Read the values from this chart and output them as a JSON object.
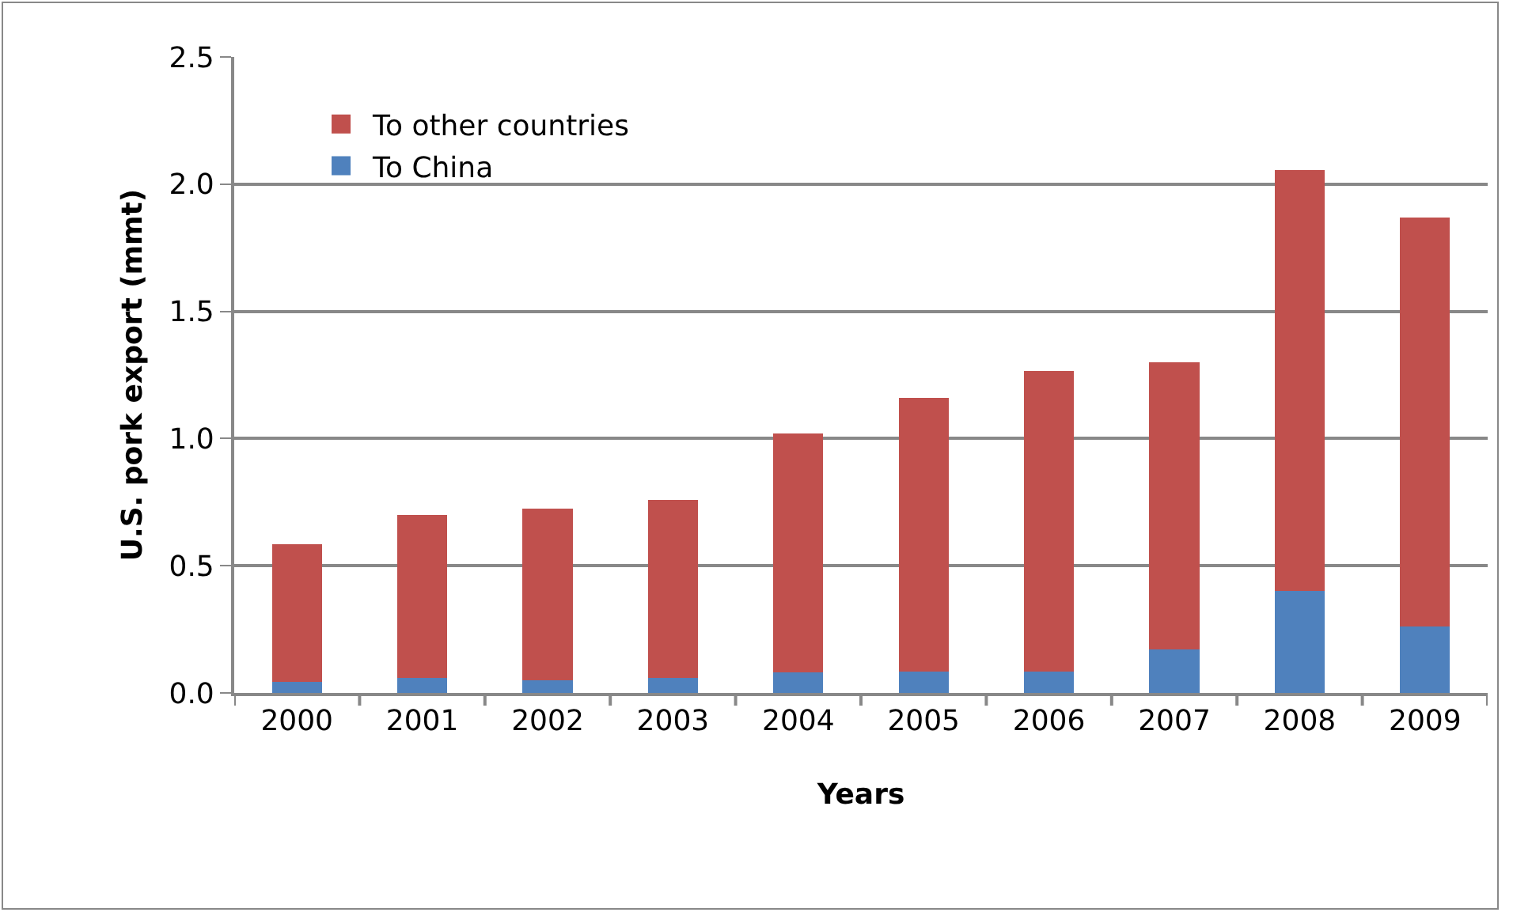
{
  "chart_data": {
    "type": "bar",
    "stacked": true,
    "xlabel": "Years",
    "ylabel": "U.S. pork export (mmt)",
    "categories": [
      "2000",
      "2001",
      "2002",
      "2003",
      "2004",
      "2005",
      "2006",
      "2007",
      "2008",
      "2009"
    ],
    "series": [
      {
        "name": "To China",
        "color": "#4f81bd",
        "values": [
          0.045,
          0.06,
          0.05,
          0.06,
          0.08,
          0.085,
          0.085,
          0.17,
          0.4,
          0.26
        ]
      },
      {
        "name": "To other countries",
        "color": "#c0504d",
        "values": [
          0.54,
          0.64,
          0.675,
          0.7,
          0.94,
          1.075,
          1.18,
          1.13,
          1.655,
          1.61
        ]
      }
    ],
    "ylim": [
      0,
      2.5
    ],
    "yticks": [
      {
        "value": 0,
        "label": "0.0"
      },
      {
        "value": 0.5,
        "label": "0.5"
      },
      {
        "value": 1,
        "label": "1.0"
      },
      {
        "value": 1.5,
        "label": "1.5"
      },
      {
        "value": 2,
        "label": "2.0"
      },
      {
        "value": 2.5,
        "label": "2.5"
      }
    ],
    "grid": "y",
    "legend": "top left"
  }
}
